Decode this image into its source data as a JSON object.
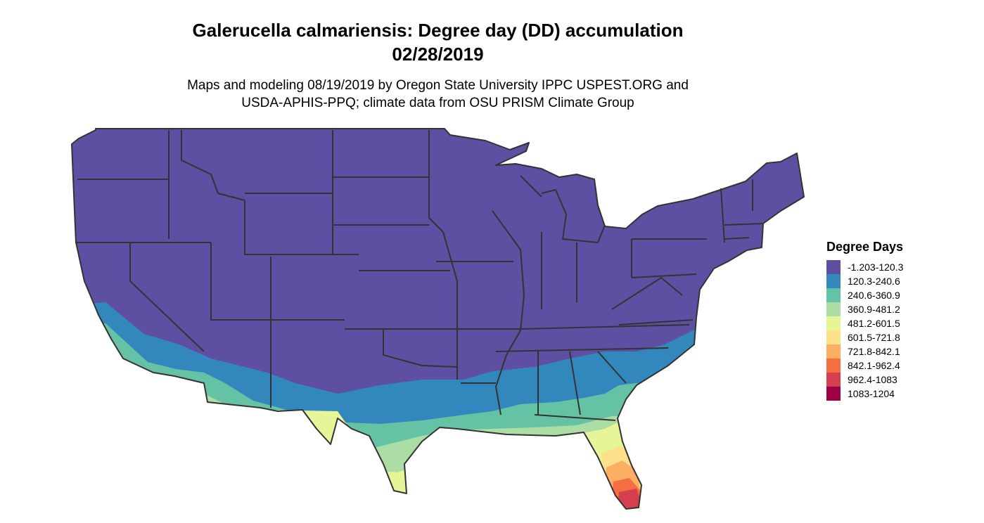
{
  "title": {
    "line1": "Galerucella calmariensis: Degree day (DD) accumulation",
    "line2": "02/28/2019"
  },
  "subtitle": {
    "line1": "Maps and modeling 08/19/2019 by Oregon State University IPPC USPEST.ORG and",
    "line2": "USDA-APHIS-PPQ; climate data from OSU PRISM Climate Group"
  },
  "legend": {
    "title": "Degree Days",
    "items": [
      {
        "label": "-1.203-120.3",
        "color": "#5E4FA2"
      },
      {
        "label": "120.3-240.6",
        "color": "#3288BD"
      },
      {
        "label": "240.6-360.9",
        "color": "#66C2A5"
      },
      {
        "label": "360.9-481.2",
        "color": "#ABDDA4"
      },
      {
        "label": "481.2-601.5",
        "color": "#E6F598"
      },
      {
        "label": "601.5-721.8",
        "color": "#FEE08B"
      },
      {
        "label": "721.8-842.1",
        "color": "#FDAE61"
      },
      {
        "label": "842.1-962.4",
        "color": "#F46D43"
      },
      {
        "label": "962.4-1083",
        "color": "#D53E4F"
      },
      {
        "label": "1083-1204",
        "color": "#9E0142"
      }
    ]
  },
  "map": {
    "region": "Contiguous United States",
    "border_color": "#333333"
  }
}
